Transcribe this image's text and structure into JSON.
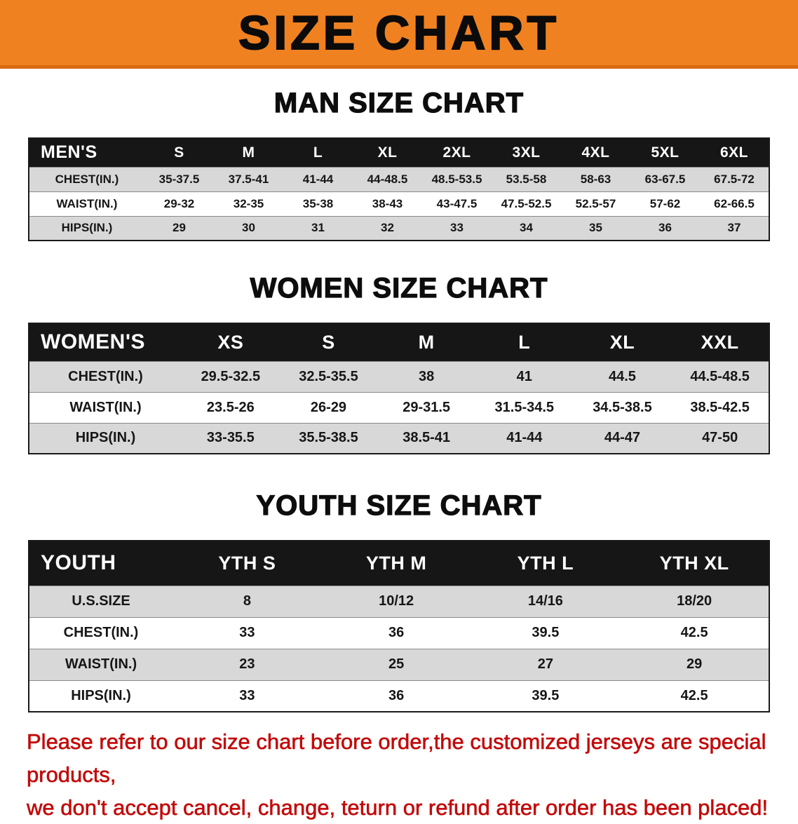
{
  "banner": {
    "title": "SIZE CHART",
    "bg_color": "#F08121"
  },
  "sections": [
    {
      "heading": "MAN SIZE CHART",
      "table": {
        "corner_label": "MEN'S",
        "columns": [
          "S",
          "M",
          "L",
          "XL",
          "2XL",
          "3XL",
          "4XL",
          "5XL",
          "6XL"
        ],
        "rows": [
          {
            "label": "CHEST(IN.)",
            "values": [
              "35-37.5",
              "37.5-41",
              "41-44",
              "44-48.5",
              "48.5-53.5",
              "53.5-58",
              "58-63",
              "63-67.5",
              "67.5-72"
            ]
          },
          {
            "label": "WAIST(IN.)",
            "values": [
              "29-32",
              "32-35",
              "35-38",
              "38-43",
              "43-47.5",
              "47.5-52.5",
              "52.5-57",
              "57-62",
              "62-66.5"
            ]
          },
          {
            "label": "HIPS(IN.)",
            "values": [
              "29",
              "30",
              "31",
              "32",
              "33",
              "34",
              "35",
              "36",
              "37"
            ]
          }
        ]
      }
    },
    {
      "heading": "WOMEN SIZE CHART",
      "table": {
        "corner_label": "WOMEN'S",
        "columns": [
          "XS",
          "S",
          "M",
          "L",
          "XL",
          "XXL"
        ],
        "rows": [
          {
            "label": "CHEST(IN.)",
            "values": [
              "29.5-32.5",
              "32.5-35.5",
              "38",
              "41",
              "44.5",
              "44.5-48.5"
            ]
          },
          {
            "label": "WAIST(IN.)",
            "values": [
              "23.5-26",
              "26-29",
              "29-31.5",
              "31.5-34.5",
              "34.5-38.5",
              "38.5-42.5"
            ]
          },
          {
            "label": "HIPS(IN.)",
            "values": [
              "33-35.5",
              "35.5-38.5",
              "38.5-41",
              "41-44",
              "44-47",
              "47-50"
            ]
          }
        ]
      }
    },
    {
      "heading": "YOUTH SIZE CHART",
      "table": {
        "corner_label": "YOUTH",
        "columns": [
          "YTH S",
          "YTH M",
          "YTH L",
          "YTH XL"
        ],
        "rows": [
          {
            "label": "U.S.SIZE",
            "values": [
              "8",
              "10/12",
              "14/16",
              "18/20"
            ]
          },
          {
            "label": "CHEST(IN.)",
            "values": [
              "33",
              "36",
              "39.5",
              "42.5"
            ]
          },
          {
            "label": "WAIST(IN.)",
            "values": [
              "23",
              "25",
              "27",
              "29"
            ]
          },
          {
            "label": "HIPS(IN.)",
            "values": [
              "33",
              "36",
              "39.5",
              "42.5"
            ]
          }
        ]
      }
    }
  ],
  "footer_note": {
    "line1": "Please refer to our size chart before order,the customized jerseys are special products,",
    "line2": "we don't accept cancel, change, teturn or refund after order has been placed!",
    "color": "#C20A0A"
  }
}
